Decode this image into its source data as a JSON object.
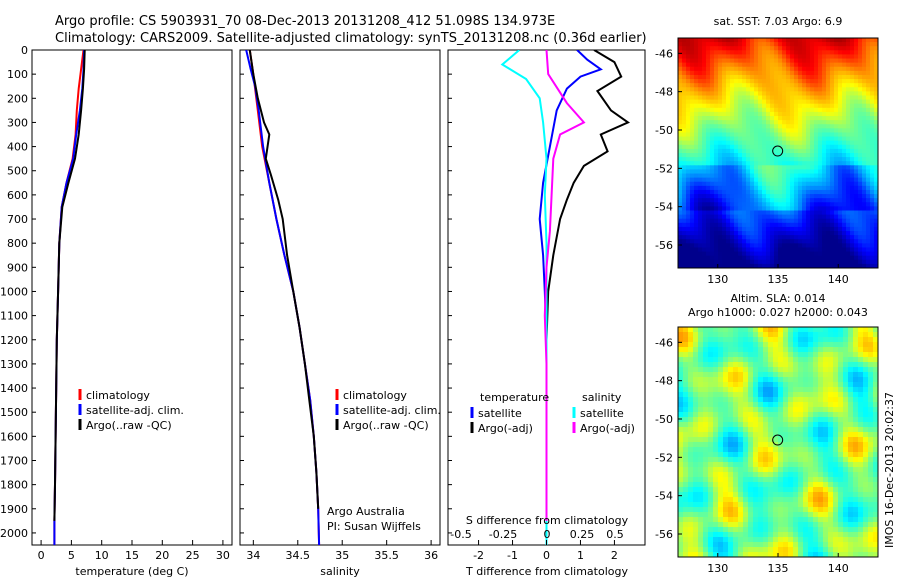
{
  "header": {
    "title_line1": "Argo profile: CS 5903931_70 08-Dec-2013 20131208_412 51.098S 134.973E",
    "title_line2": "Climatology: CARS2009. Satellite-adjusted climatology: synTS_20131208.nc (0.36d earlier)"
  },
  "colors": {
    "climatology": "#ff0000",
    "satellite": "#0000ff",
    "argo": "#000000",
    "sat_salinity": "#00ffff",
    "argo_salinity_diff": "#ff00ff"
  },
  "depth_ticks": [
    "0",
    "100",
    "200",
    "300",
    "400",
    "500",
    "600",
    "700",
    "800",
    "900",
    "1000",
    "1100",
    "1200",
    "1300",
    "1400",
    "1500",
    "1600",
    "1700",
    "1800",
    "1900",
    "2000"
  ],
  "chart_data": [
    {
      "type": "line",
      "xlabel": "temperature (deg C)",
      "xlim": [
        -1.5,
        31.5
      ],
      "ylim": [
        2050,
        0
      ],
      "xticks": [
        "0",
        "5",
        "10",
        "15",
        "20",
        "25",
        "30"
      ],
      "legend_position": "bottom-center",
      "series": [
        {
          "name": "climatology",
          "color": "#ff0000",
          "points": [
            [
              7.0,
              0
            ],
            [
              6.6,
              80
            ],
            [
              6.2,
              160
            ],
            [
              5.9,
              250
            ],
            [
              5.7,
              350
            ],
            [
              5.2,
              450
            ],
            [
              4.2,
              550
            ],
            [
              3.4,
              650
            ],
            [
              3.0,
              800
            ],
            [
              2.8,
              1000
            ],
            [
              2.6,
              1200
            ],
            [
              2.5,
              1400
            ],
            [
              2.4,
              1600
            ],
            [
              2.3,
              1800
            ],
            [
              2.2,
              1950
            ],
            [
              2.2,
              2050
            ]
          ]
        },
        {
          "name": "satellite-adj. clim.",
          "color": "#0000ff",
          "points": [
            [
              7.1,
              0
            ],
            [
              7.0,
              80
            ],
            [
              6.8,
              160
            ],
            [
              6.4,
              250
            ],
            [
              5.8,
              350
            ],
            [
              5.3,
              450
            ],
            [
              4.2,
              550
            ],
            [
              3.4,
              650
            ],
            [
              3.0,
              800
            ],
            [
              2.8,
              1000
            ],
            [
              2.6,
              1200
            ],
            [
              2.5,
              1400
            ],
            [
              2.4,
              1600
            ],
            [
              2.3,
              1800
            ],
            [
              2.2,
              1950
            ],
            [
              2.2,
              2050
            ]
          ]
        },
        {
          "name": "Argo(..raw -QC)",
          "color": "#000000",
          "points": [
            [
              7.2,
              0
            ],
            [
              7.1,
              80
            ],
            [
              6.9,
              160
            ],
            [
              6.6,
              250
            ],
            [
              6.2,
              350
            ],
            [
              5.6,
              450
            ],
            [
              4.5,
              550
            ],
            [
              3.5,
              650
            ],
            [
              3.0,
              800
            ],
            [
              2.8,
              1000
            ],
            [
              2.6,
              1200
            ],
            [
              2.5,
              1400
            ],
            [
              2.4,
              1600
            ],
            [
              2.3,
              1800
            ],
            [
              2.2,
              1950
            ]
          ]
        }
      ],
      "legend": [
        "climatology",
        "satellite-adj. clim.",
        "Argo(..raw -QC)"
      ]
    },
    {
      "type": "line",
      "xlabel": "salinity",
      "xlim": [
        33.85,
        36.1
      ],
      "ylim": [
        2050,
        0
      ],
      "xticks": [
        "34",
        "34.5",
        "35",
        "35.5",
        "36"
      ],
      "legend_position": "bottom-center",
      "annotation": [
        "Argo Australia",
        "PI: Susan Wijffels"
      ],
      "series": [
        {
          "name": "climatology",
          "color": "#ff0000",
          "points": [
            [
              33.96,
              0
            ],
            [
              34.0,
              100
            ],
            [
              34.05,
              250
            ],
            [
              34.1,
              400
            ],
            [
              34.18,
              550
            ],
            [
              34.26,
              700
            ],
            [
              34.35,
              850
            ],
            [
              34.45,
              1000
            ],
            [
              34.52,
              1150
            ],
            [
              34.58,
              1300
            ],
            [
              34.64,
              1450
            ],
            [
              34.68,
              1600
            ],
            [
              34.71,
              1750
            ],
            [
              34.73,
              1900
            ],
            [
              34.74,
              2050
            ]
          ]
        },
        {
          "name": "satellite-adj. clim.",
          "color": "#0000ff",
          "points": [
            [
              33.92,
              0
            ],
            [
              33.97,
              80
            ],
            [
              34.02,
              150
            ],
            [
              34.06,
              250
            ],
            [
              34.11,
              400
            ],
            [
              34.18,
              550
            ],
            [
              34.26,
              700
            ],
            [
              34.35,
              850
            ],
            [
              34.45,
              1000
            ],
            [
              34.52,
              1150
            ],
            [
              34.58,
              1300
            ],
            [
              34.64,
              1450
            ],
            [
              34.68,
              1600
            ],
            [
              34.71,
              1750
            ],
            [
              34.73,
              1900
            ],
            [
              34.74,
              2050
            ]
          ]
        },
        {
          "name": "Argo(..raw -QC)",
          "color": "#000000",
          "points": [
            [
              33.96,
              0
            ],
            [
              34.0,
              100
            ],
            [
              34.05,
              200
            ],
            [
              34.12,
              300
            ],
            [
              34.18,
              350
            ],
            [
              34.14,
              450
            ],
            [
              34.2,
              520
            ],
            [
              34.28,
              620
            ],
            [
              34.33,
              700
            ],
            [
              34.38,
              850
            ],
            [
              34.45,
              1000
            ],
            [
              34.52,
              1150
            ],
            [
              34.58,
              1300
            ],
            [
              34.63,
              1450
            ],
            [
              34.68,
              1600
            ],
            [
              34.71,
              1750
            ],
            [
              34.73,
              1900
            ]
          ]
        }
      ],
      "legend": [
        "climatology",
        "satellite-adj. clim.",
        "Argo(..raw -QC)"
      ]
    },
    {
      "type": "line",
      "xlabel": "T difference from climatology",
      "xlabel_top": "S difference from climatology",
      "xlim": [
        -2.9,
        2.9
      ],
      "ylim": [
        2050,
        0
      ],
      "xticks": [
        "-2",
        "-1",
        "0",
        "1",
        "2"
      ],
      "xticks_top": [
        "-0.5",
        "-0.25",
        "0",
        "0.25",
        "0.5"
      ],
      "legend_position": "bottom-center",
      "legend_groups": [
        "temperature",
        "salinity"
      ],
      "series": [
        {
          "name": "satellite",
          "group": "temperature",
          "color": "#0000ff",
          "points": [
            [
              0.9,
              0
            ],
            [
              1.2,
              40
            ],
            [
              1.6,
              80
            ],
            [
              1.0,
              110
            ],
            [
              0.6,
              160
            ],
            [
              0.3,
              250
            ],
            [
              0.1,
              400
            ],
            [
              -0.1,
              550
            ],
            [
              -0.2,
              700
            ],
            [
              -0.1,
              850
            ],
            [
              -0.05,
              1000
            ],
            [
              0.0,
              1200
            ],
            [
              0.0,
              1500
            ],
            [
              0.0,
              1800
            ],
            [
              0.0,
              2050
            ]
          ]
        },
        {
          "name": "Argo(-adj)",
          "group": "temperature",
          "color": "#000000",
          "points": [
            [
              1.4,
              0
            ],
            [
              2.0,
              50
            ],
            [
              2.2,
              110
            ],
            [
              1.5,
              170
            ],
            [
              1.9,
              250
            ],
            [
              2.4,
              300
            ],
            [
              1.6,
              350
            ],
            [
              1.8,
              420
            ],
            [
              1.1,
              480
            ],
            [
              0.8,
              550
            ],
            [
              0.6,
              620
            ],
            [
              0.4,
              700
            ],
            [
              0.2,
              850
            ],
            [
              0.05,
              1000
            ],
            [
              0.0,
              1200
            ],
            [
              0.0,
              1500
            ],
            [
              0.0,
              1800
            ],
            [
              0.0,
              1950
            ]
          ]
        },
        {
          "name": "satellite",
          "group": "salinity",
          "color": "#00ffff",
          "points": [
            [
              -0.8,
              0
            ],
            [
              -1.3,
              60
            ],
            [
              -0.6,
              120
            ],
            [
              -0.2,
              200
            ],
            [
              -0.1,
              300
            ],
            [
              0.0,
              450
            ],
            [
              -0.05,
              600
            ],
            [
              0.0,
              800
            ],
            [
              0.0,
              1000
            ],
            [
              0.0,
              1500
            ],
            [
              0.0,
              2050
            ]
          ]
        },
        {
          "name": "Argo(-adj)",
          "group": "salinity",
          "color": "#ff00ff",
          "points": [
            [
              0.0,
              0
            ],
            [
              0.05,
              100
            ],
            [
              0.6,
              220
            ],
            [
              1.1,
              300
            ],
            [
              0.4,
              350
            ],
            [
              0.2,
              450
            ],
            [
              0.15,
              600
            ],
            [
              0.1,
              750
            ],
            [
              0.0,
              900
            ],
            [
              -0.05,
              1100
            ],
            [
              0.0,
              1300
            ],
            [
              0.0,
              1500
            ],
            [
              0.0,
              1800
            ],
            [
              0.0,
              1950
            ]
          ]
        }
      ],
      "legend": [
        "satellite",
        "Argo(-adj)",
        "satellite",
        "Argo(-adj)"
      ]
    },
    {
      "type": "heatmap",
      "title": "sat. SST: 7.03 Argo: 6.9",
      "xlim": [
        126.7,
        143.3
      ],
      "ylim": [
        -57.2,
        -45.2
      ],
      "xticks": [
        "130",
        "135",
        "140"
      ],
      "yticks": [
        "-46",
        "-48",
        "-50",
        "-52",
        "-54",
        "-56"
      ],
      "marker": {
        "lon": 134.973,
        "lat": -51.098
      }
    },
    {
      "type": "heatmap",
      "title": "Altim. SLA: 0.014",
      "subtitle": "Argo h1000: 0.027 h2000: 0.043",
      "xlim": [
        126.7,
        143.3
      ],
      "ylim": [
        -57.2,
        -45.2
      ],
      "xticks": [
        "130",
        "135",
        "140"
      ],
      "yticks": [
        "-46",
        "-48",
        "-50",
        "-52",
        "-54",
        "-56"
      ],
      "marker": {
        "lon": 134.973,
        "lat": -51.098
      }
    }
  ],
  "footer_stamp": "IMOS 16-Dec-2013 20:02:37"
}
